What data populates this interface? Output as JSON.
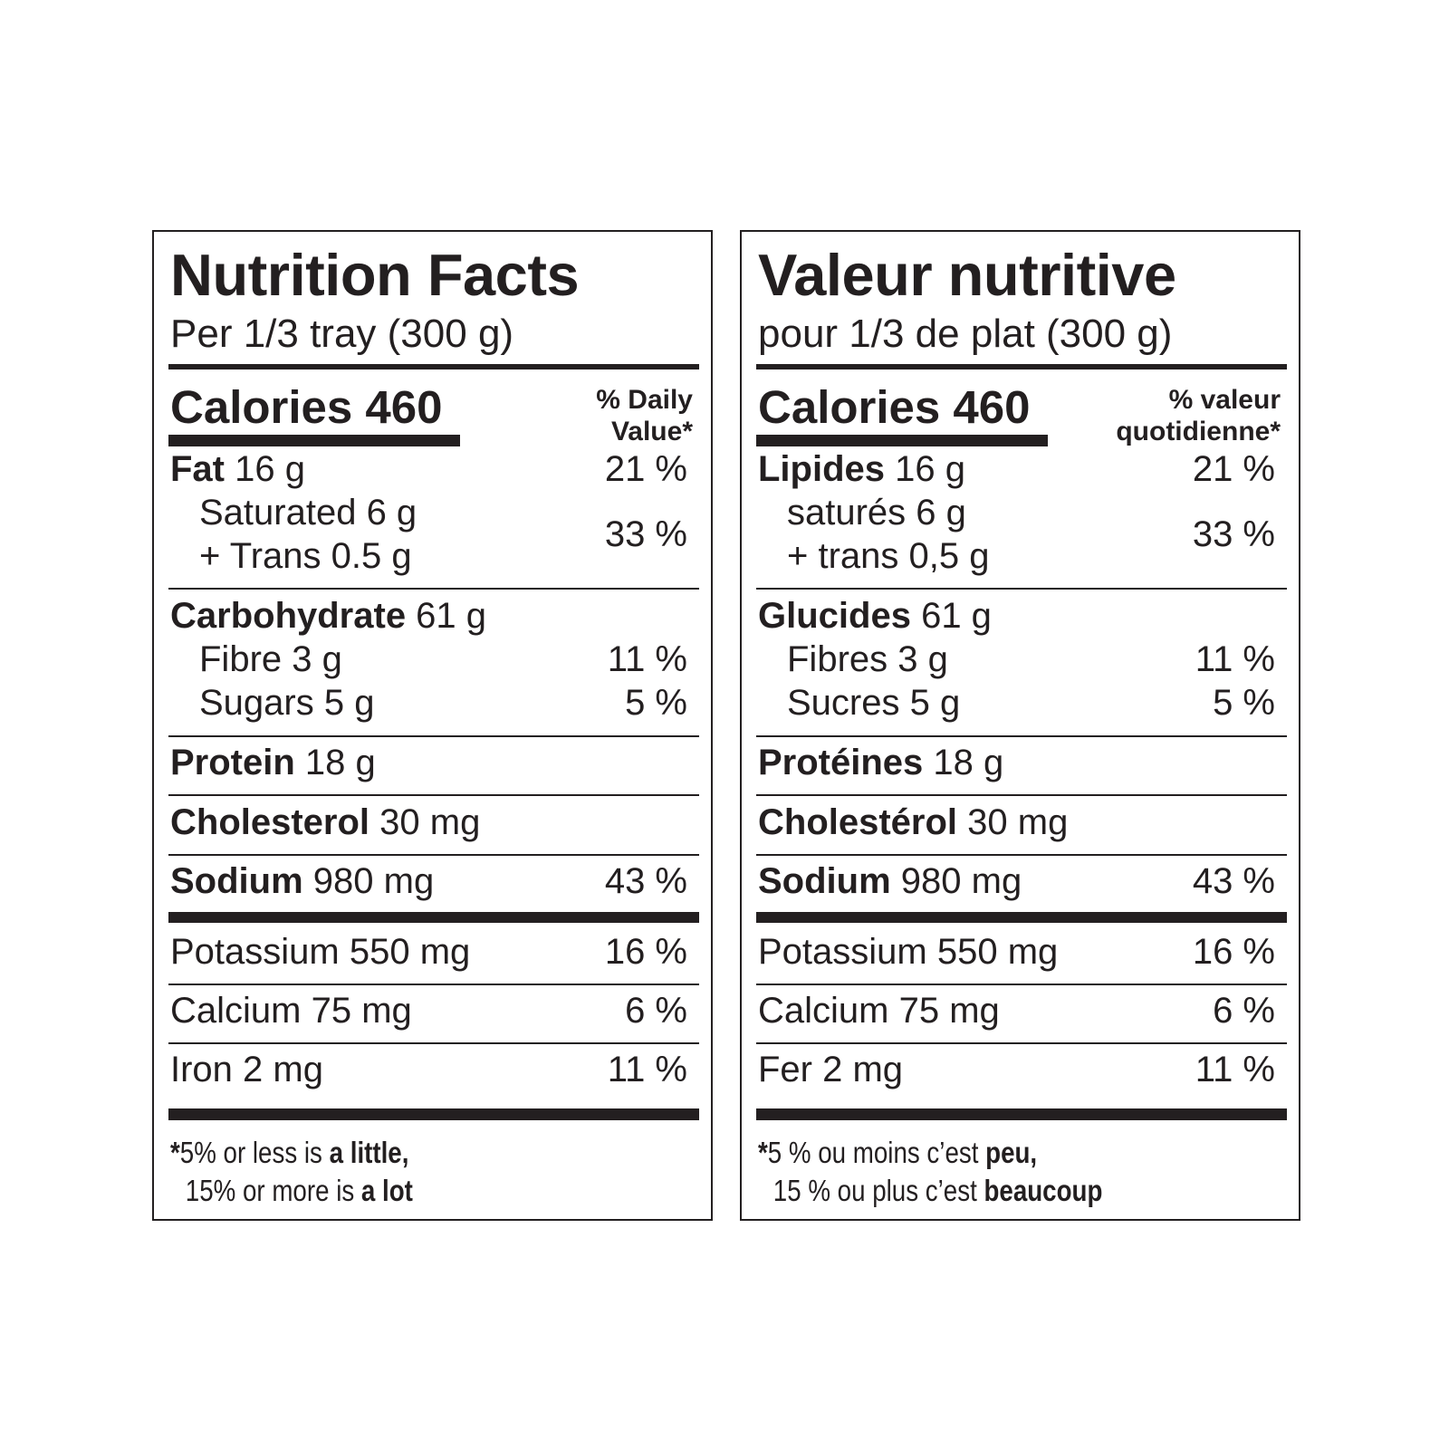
{
  "labels": [
    {
      "title": "Nutrition Facts",
      "serving": "Per 1/3 tray (300 g)",
      "calories": "Calories 460",
      "dv_line1": "% Daily",
      "dv_line2": "Value*",
      "fat_label": "Fat",
      "fat_amount": " 16 g",
      "fat_pct": "21 %",
      "saturated": "Saturated 6 g",
      "trans": "+ Trans 0.5 g",
      "sat_trans_pct": "33 %",
      "carb_label": "Carbohydrate",
      "carb_amount": " 61 g",
      "fibre": "Fibre 3 g",
      "fibre_pct": "11 %",
      "sugars": "Sugars 5 g",
      "sugars_pct": "5 %",
      "protein_label": "Protein",
      "protein_amount": " 18 g",
      "chol_label": "Cholesterol",
      "chol_amount": " 30 mg",
      "sodium_label": "Sodium",
      "sodium_amount": " 980 mg",
      "sodium_pct": "43 %",
      "potassium": "Potassium 550 mg",
      "potassium_pct": "16 %",
      "calcium": "Calcium 75 mg",
      "calcium_pct": "6 %",
      "iron": "Iron 2 mg",
      "iron_pct": "11 %",
      "note_star": "*",
      "note_1a": "5% or less is ",
      "note_1b": "a little,",
      "note_2a": "15% or more is ",
      "note_2b": "a lot"
    },
    {
      "title": "Valeur nutritive",
      "serving": "pour 1/3 de plat (300 g)",
      "calories": "Calories 460",
      "dv_line1": "% valeur",
      "dv_line2": "quotidienne*",
      "fat_label": "Lipides",
      "fat_amount": " 16 g",
      "fat_pct": "21 %",
      "saturated": "saturés 6 g",
      "trans": "+ trans 0,5 g",
      "sat_trans_pct": "33 %",
      "carb_label": "Glucides",
      "carb_amount": " 61 g",
      "fibre": "Fibres 3 g",
      "fibre_pct": "11 %",
      "sugars": "Sucres 5 g",
      "sugars_pct": "5 %",
      "protein_label": "Protéines",
      "protein_amount": " 18 g",
      "chol_label": "Cholestérol",
      "chol_amount": " 30 mg",
      "sodium_label": "Sodium",
      "sodium_amount": " 980 mg",
      "sodium_pct": "43 %",
      "potassium": "Potassium 550 mg",
      "potassium_pct": "16 %",
      "calcium": "Calcium 75 mg",
      "calcium_pct": "6 %",
      "iron": "Fer 2 mg",
      "iron_pct": "11 %",
      "note_star": "*",
      "note_1a": "5 % ou moins c’est ",
      "note_1b": "peu,",
      "note_2a": "15 % ou plus c’est ",
      "note_2b": "beaucoup"
    }
  ],
  "colors": {
    "ink": "#231f20",
    "background": "#ffffff"
  }
}
